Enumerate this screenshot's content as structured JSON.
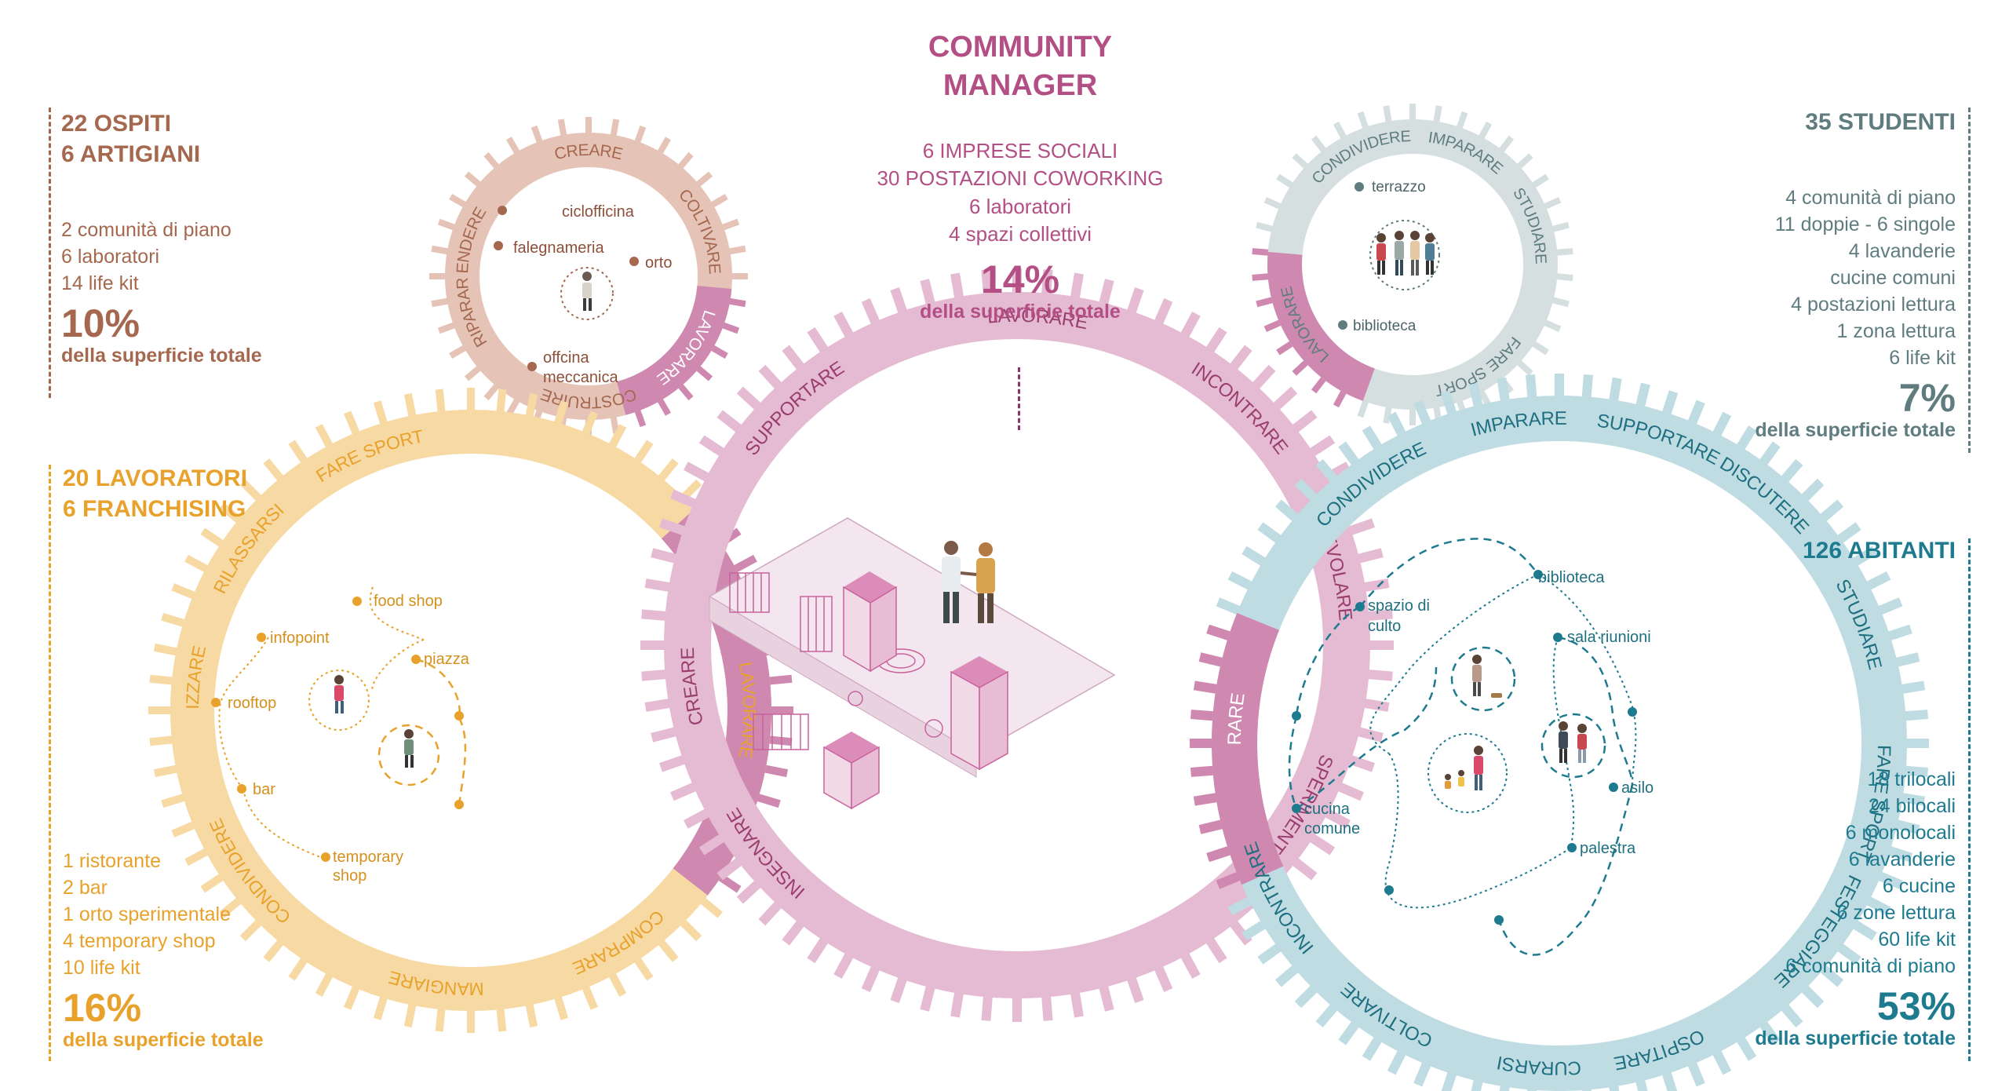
{
  "colors": {
    "brown": "#a5684f",
    "amber": "#e8a22b",
    "slate": "#5f7c7f",
    "teal": "#1e7b8f",
    "plum": "#b34f85",
    "ring_brown": "#e5c4b7",
    "ring_amber": "#f7d9a4",
    "ring_grey": "#d6dfe0",
    "ring_blue": "#bfdce3",
    "ring_pink": "#e5bbd3",
    "ring_plum": "#cf88b0"
  },
  "community_manager": {
    "title_line1": "COMMUNITY",
    "title_line2": "MANAGER",
    "lines": [
      "6  IMPRESE SOCIALI",
      "30 POSTAZIONI COWORKING",
      "6 laboratori",
      "4 spazi collettivi"
    ],
    "percent": "14%",
    "percent_caption": "della superficie totale"
  },
  "ospiti": {
    "title_line1": "22 OSPITI",
    "title_line2": "6 ARTIGIANI",
    "lines": [
      "2 comunità di piano",
      "6 laboratori",
      "14 life kit"
    ],
    "percent": "10%",
    "percent_caption": "della superficie totale"
  },
  "lavoratori": {
    "title_line1": "20 LAVORATORI",
    "title_line2": "6 FRANCHISING",
    "lines": [
      "1 ristorante",
      "2 bar",
      "1 orto sperimentale",
      "4 temporary shop",
      "10 life kit"
    ],
    "percent": "16%",
    "percent_caption": "della superficie totale"
  },
  "studenti": {
    "title": "35  STUDENTI",
    "lines": [
      "4 comunità di piano",
      "11 doppie - 6 singole",
      "4 lavanderie",
      "cucine comuni",
      "4 postazioni lettura",
      "1 zona lettura",
      "6 life kit"
    ],
    "percent": "7%",
    "percent_caption": "della superficie totale"
  },
  "abitanti": {
    "title": "126 ABITANTI",
    "lines": [
      "18 trilocali",
      "24 bilocali",
      "6 monolocali",
      "6 lavanderie",
      "6 cucine",
      "6 zone lettura",
      "60 life kit",
      "6 comunità di piano"
    ],
    "percent": "53%",
    "percent_caption": "della superficie totale"
  },
  "ring_brown": {
    "ring_words": [
      "CREARE",
      "COLTIVARE",
      "LAVORARE",
      "COSTRUIRE",
      "RIPARARE",
      "VENDERE"
    ],
    "places": [
      "ciclofficina",
      "falegnameria",
      "orto",
      "offcina",
      "meccanica"
    ]
  },
  "ring_amber": {
    "ring_words": [
      "FARE SPORT",
      "RILASSARSI",
      "SOCIALIZZARE",
      "CONDIVIDERE",
      "MANGIARE",
      "COMPRARE",
      "LAVORARE"
    ],
    "places": [
      "food shop",
      "infopoint",
      "piazza",
      "rooftop",
      "bar",
      "temporary",
      "shop"
    ]
  },
  "ring_pink": {
    "ring_words": [
      "LAVORARE",
      "INCONTRARE",
      "AGEVOLARE",
      "SPERIMENTARE",
      "INSEGNARE",
      "CREARE",
      "SUPPORTARE"
    ]
  },
  "ring_grey": {
    "ring_words": [
      "IMPARARE",
      "STUDIARE",
      "FARE SPORT",
      "LAVORARE",
      "CONDIVIDERE"
    ],
    "places": [
      "terrazzo",
      "biblioteca"
    ]
  },
  "ring_blue": {
    "ring_words": [
      "IMPARARE",
      "SUPPORTARE",
      "DISCUTERE",
      "STUDIARE",
      "FARE SPORT",
      "FESTEGGIARE",
      "OSPITARE",
      "CURARSI",
      "COLTIVARE",
      "INCONTRARE",
      "LAVORARE",
      "CONDIVIDERE"
    ],
    "places": [
      "biblioteca",
      "spazio di",
      "culto",
      "sala riunioni",
      "cucina",
      "comune",
      "asilo",
      "palestra"
    ]
  }
}
